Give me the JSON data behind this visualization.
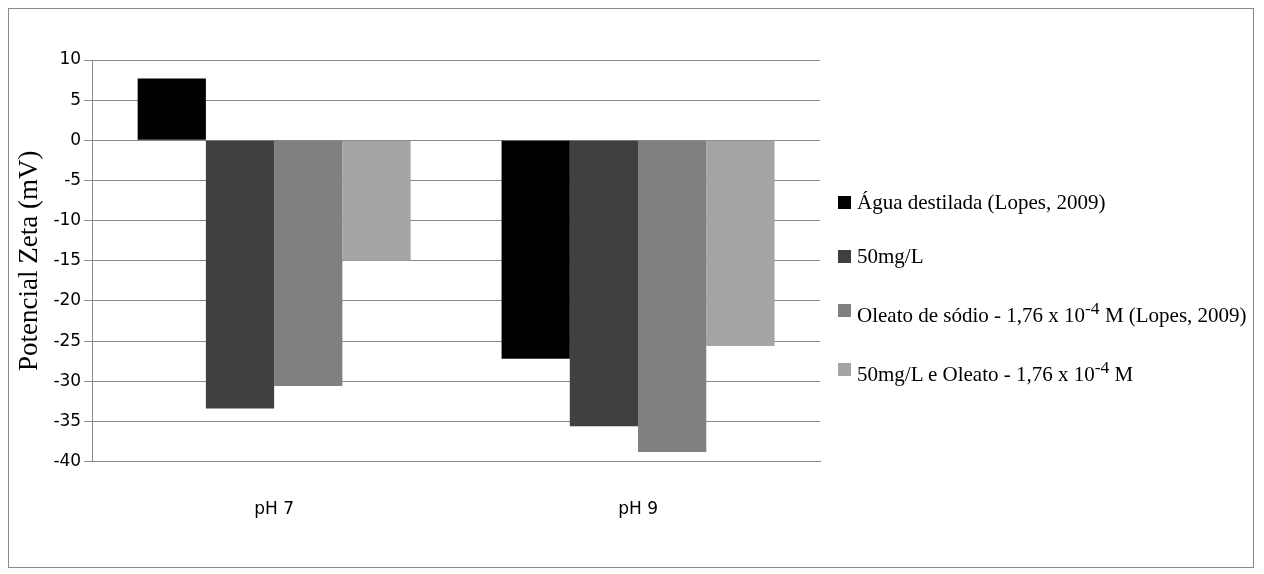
{
  "chart_data": {
    "type": "bar",
    "ylabel": "Potencial Zeta (mV)",
    "categories": [
      "pH 7",
      "pH 9"
    ],
    "series": [
      {
        "name": "Água destilada (Lopes, 2009)",
        "color": "#000000",
        "values": [
          7.7,
          -27.2
        ]
      },
      {
        "name": "50mg/L",
        "color": "#404040",
        "values": [
          -33.4,
          -35.6
        ]
      },
      {
        "name": "Oleato de sódio - 1,76 x 10$^{-4}$ M (Lopes, 2009)",
        "color": "#808080",
        "values": [
          -30.6,
          -38.8
        ]
      },
      {
        "name": "50mg/L e Oleato - 1,76 x 10$^{-4}$ M",
        "color": "#a5a5a5",
        "values": [
          -15,
          -25.6
        ]
      }
    ],
    "ylim": [
      -40,
      10
    ],
    "yticks": [
      -40,
      -35,
      -30,
      -25,
      -20,
      -15,
      -10,
      -5,
      0,
      5,
      10
    ],
    "grid": "y",
    "legend": "right"
  }
}
